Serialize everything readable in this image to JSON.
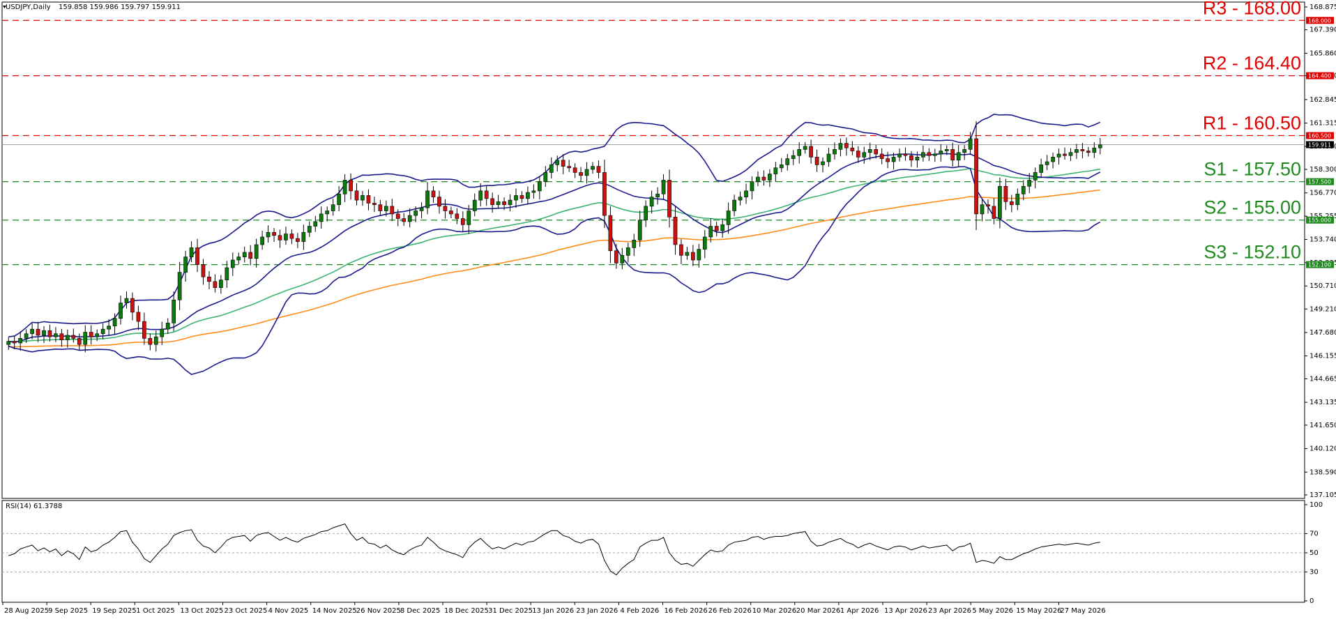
{
  "header": {
    "symbol": "USDJPY,Daily",
    "ohlc": "159.858 159.986 159.797 159.911"
  },
  "rsi_header": "RSI(14) 61.3788",
  "colors": {
    "bull": "#0a7a0a",
    "bear": "#cc1111",
    "bollinger": "#1a1a8c",
    "ma_green": "#3cb371",
    "ma_orange": "#ff8c1a",
    "resistance": "#e00000",
    "support": "#1e8a1e",
    "price_line": "#9aa0aa",
    "rsi_line": "#000000"
  },
  "levels": [
    {
      "name": "R3",
      "label": "R3 - 168.00",
      "value": 168.0,
      "tag": "168.000",
      "kind": "resistance"
    },
    {
      "name": "R2",
      "label": "R2 - 164.40",
      "value": 164.4,
      "tag": "164.400",
      "kind": "resistance"
    },
    {
      "name": "R1",
      "label": "R1 - 160.50",
      "value": 160.5,
      "tag": "160.500",
      "kind": "resistance"
    },
    {
      "name": "S1",
      "label": "S1 - 157.50",
      "value": 157.5,
      "tag": "157.500",
      "kind": "support"
    },
    {
      "name": "S2",
      "label": "S2 - 155.00",
      "value": 155.0,
      "tag": "155.000",
      "kind": "support"
    },
    {
      "name": "S3",
      "label": "S3 - 152.10",
      "value": 152.1,
      "tag": "152.100",
      "kind": "support"
    }
  ],
  "current_price": {
    "value": 159.911,
    "tag": "159.911"
  },
  "chart_data": {
    "type": "candlestick",
    "symbol": "USDJPY",
    "timeframe": "Daily",
    "ylim": [
      137.105,
      168.875
    ],
    "price_ticks": [
      "168.875",
      "167.390",
      "165.860",
      "164.400",
      "162.845",
      "161.315",
      "159.800",
      "158.300",
      "156.770",
      "155.255",
      "153.740",
      "152.225",
      "150.710",
      "149.210",
      "147.680",
      "146.155",
      "144.665",
      "143.135",
      "141.650",
      "140.120",
      "138.590",
      "137.105"
    ],
    "date_labels": [
      "28 Aug 2025",
      "9 Sep 2025",
      "19 Sep 2025",
      "1 Oct 2025",
      "13 Oct 2025",
      "23 Oct 2025",
      "4 Nov 2025",
      "14 Nov 2025",
      "26 Nov 2025",
      "8 Dec 2025",
      "18 Dec 2025",
      "31 Dec 2025",
      "13 Jan 2026",
      "23 Jan 2026",
      "4 Feb 2026",
      "16 Feb 2026",
      "26 Feb 2026",
      "10 Mar 2026",
      "20 Mar 2026",
      "1 Apr 2026",
      "13 Apr 2026",
      "23 Apr 2026",
      "5 May 2026",
      "15 May 2026",
      "27 May 2026"
    ],
    "close_series": [
      147.1,
      147.0,
      147.3,
      147.6,
      147.9,
      147.5,
      147.8,
      147.4,
      147.6,
      147.2,
      147.5,
      147.3,
      146.9,
      147.7,
      147.4,
      147.6,
      147.9,
      148.1,
      148.6,
      149.6,
      149.9,
      149.0,
      148.4,
      147.3,
      146.9,
      147.4,
      147.9,
      148.3,
      149.8,
      151.6,
      152.6,
      153.2,
      152.1,
      151.3,
      151.0,
      150.6,
      151.1,
      151.9,
      152.4,
      152.6,
      152.9,
      152.5,
      153.4,
      153.9,
      154.2,
      154.0,
      153.7,
      154.1,
      153.8,
      153.6,
      154.2,
      154.6,
      154.9,
      155.4,
      155.6,
      156.0,
      156.7,
      157.6,
      156.9,
      156.3,
      156.6,
      156.1,
      156.0,
      155.6,
      155.9,
      155.4,
      155.1,
      154.9,
      155.3,
      155.6,
      155.8,
      156.9,
      156.5,
      155.9,
      155.6,
      155.4,
      155.1,
      154.7,
      155.6,
      156.3,
      156.9,
      156.4,
      156.0,
      156.2,
      156.0,
      156.3,
      156.6,
      156.4,
      156.8,
      156.9,
      157.5,
      158.1,
      158.6,
      158.9,
      158.5,
      158.4,
      158.1,
      157.9,
      158.3,
      158.5,
      158.1,
      155.3,
      153.0,
      152.2,
      152.7,
      153.2,
      153.7,
      155.0,
      155.9,
      156.5,
      156.7,
      157.6,
      155.2,
      153.4,
      152.7,
      152.9,
      152.4,
      153.1,
      153.9,
      154.6,
      154.3,
      154.7,
      155.6,
      156.3,
      156.5,
      156.9,
      157.5,
      157.8,
      157.6,
      158.0,
      158.4,
      158.6,
      159.0,
      159.2,
      159.6,
      159.8,
      159.1,
      158.6,
      158.8,
      159.3,
      159.6,
      160.0,
      159.7,
      159.5,
      159.1,
      159.4,
      159.6,
      159.3,
      159.0,
      158.8,
      159.1,
      159.3,
      159.2,
      158.9,
      159.1,
      159.4,
      159.2,
      159.3,
      159.5,
      159.6,
      158.9,
      159.4,
      159.6,
      160.3,
      155.4,
      156.0,
      155.9,
      155.1,
      157.2,
      156.2,
      156.0,
      156.7,
      157.2,
      157.6,
      158.1,
      158.6,
      158.8,
      159.1,
      159.3,
      159.2,
      159.4,
      159.6,
      159.5,
      159.4,
      159.7,
      159.9
    ],
    "rsi": {
      "name": "RSI(14)",
      "value": 61.3788,
      "ylim": [
        0,
        100
      ],
      "levels": [
        30,
        50,
        70
      ],
      "ticks": [
        "100",
        "70",
        "50",
        "30",
        "0"
      ],
      "series": [
        47,
        49,
        54,
        56,
        58,
        52,
        55,
        51,
        54,
        47,
        52,
        49,
        43,
        56,
        51,
        53,
        58,
        61,
        66,
        72,
        73,
        61,
        54,
        44,
        40,
        47,
        54,
        59,
        68,
        71,
        73,
        74,
        63,
        57,
        55,
        50,
        56,
        63,
        66,
        67,
        68,
        62,
        68,
        70,
        71,
        67,
        63,
        66,
        63,
        61,
        65,
        67,
        69,
        72,
        73,
        76,
        78,
        80,
        70,
        63,
        66,
        60,
        59,
        55,
        58,
        53,
        50,
        48,
        53,
        56,
        58,
        66,
        61,
        55,
        52,
        50,
        48,
        45,
        55,
        61,
        65,
        59,
        54,
        56,
        54,
        57,
        60,
        58,
        61,
        62,
        66,
        70,
        73,
        73,
        68,
        66,
        62,
        60,
        63,
        64,
        59,
        42,
        31,
        27,
        34,
        39,
        43,
        56,
        60,
        63,
        63,
        66,
        50,
        42,
        38,
        39,
        36,
        42,
        48,
        53,
        51,
        52,
        58,
        61,
        62,
        63,
        66,
        67,
        64,
        66,
        67,
        67,
        68,
        70,
        71,
        72,
        62,
        57,
        58,
        61,
        63,
        65,
        61,
        59,
        55,
        58,
        60,
        57,
        55,
        53,
        56,
        57,
        56,
        53,
        55,
        57,
        55,
        56,
        57,
        58,
        52,
        56,
        57,
        60,
        40,
        42,
        41,
        39,
        46,
        43,
        43,
        46,
        49,
        51,
        54,
        56,
        57,
        58,
        59,
        58,
        59,
        60,
        59,
        58,
        60,
        61
      ],
      "series_name": ""
    }
  }
}
